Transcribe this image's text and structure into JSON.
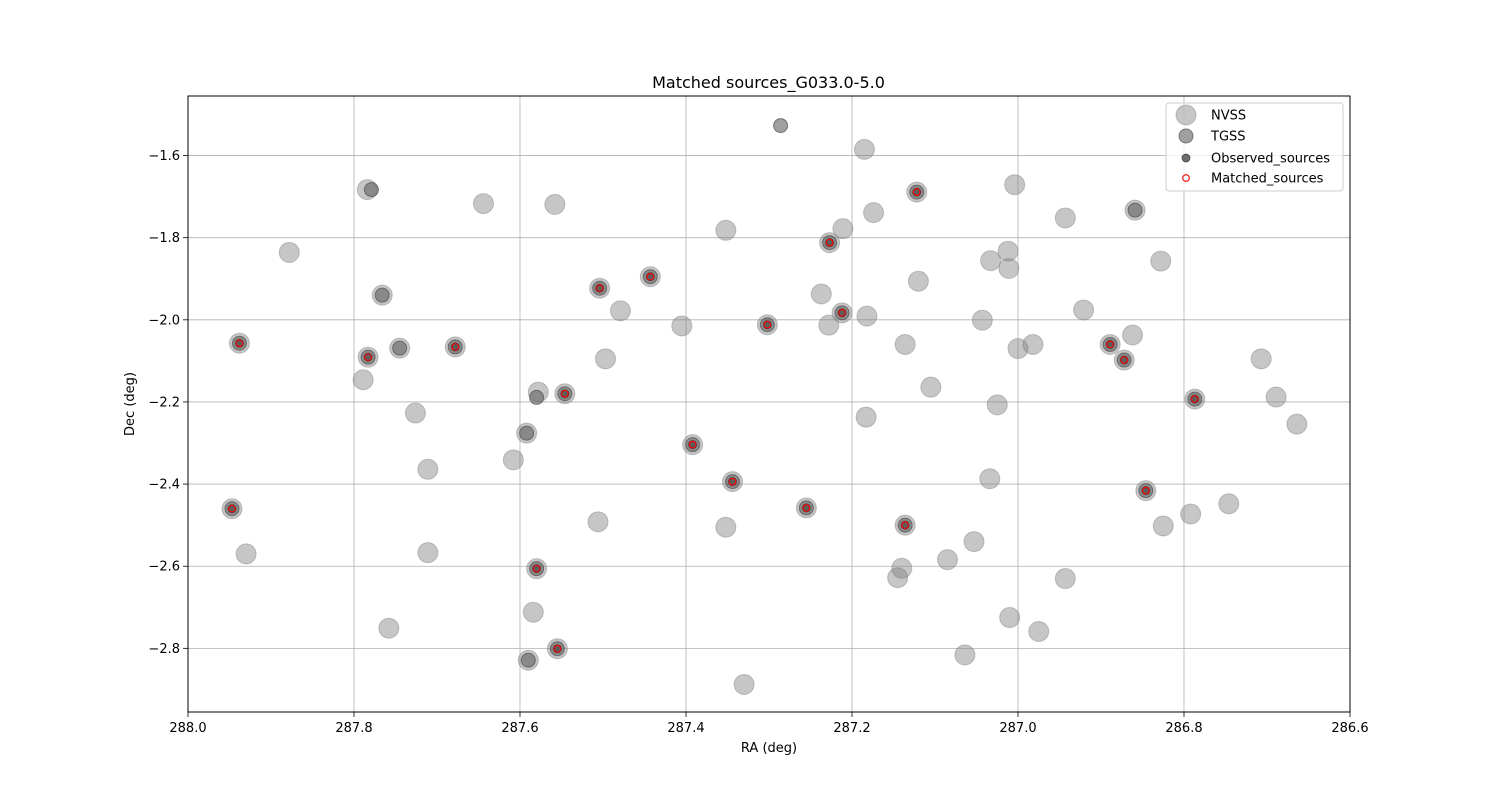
{
  "chart_data": {
    "type": "scatter",
    "title": "Matched sources_G033.0-5.0",
    "xlabel": "RA (deg)",
    "ylabel": "Dec (deg)",
    "xlim": [
      288.0,
      286.6
    ],
    "ylim": [
      -2.955,
      -1.455
    ],
    "x_inverted": true,
    "grid": true,
    "legend_position": "top-right",
    "xticks": [
      288.0,
      287.8,
      287.6,
      287.4,
      287.2,
      287.0,
      286.8,
      286.6
    ],
    "xtick_labels": [
      "288.0",
      "287.8",
      "287.6",
      "287.4",
      "287.2",
      "287.0",
      "286.8",
      "286.6"
    ],
    "yticks": [
      -1.6,
      -1.8,
      -2.0,
      -2.2,
      -2.4,
      -2.6,
      -2.8
    ],
    "ytick_labels": [
      "−1.6",
      "−1.8",
      "−2.0",
      "−2.2",
      "−2.4",
      "−2.6",
      "−2.8"
    ],
    "series": [
      {
        "name": "NVSS",
        "color": "#808080",
        "points": [
          [
            287.947,
            -2.46
          ],
          [
            287.938,
            -2.057
          ],
          [
            287.93,
            -2.57
          ],
          [
            287.878,
            -1.836
          ],
          [
            287.789,
            -2.146
          ],
          [
            287.784,
            -1.683
          ],
          [
            287.783,
            -2.091
          ],
          [
            287.766,
            -1.94
          ],
          [
            287.758,
            -2.751
          ],
          [
            287.745,
            -2.069
          ],
          [
            287.726,
            -2.227
          ],
          [
            287.711,
            -2.364
          ],
          [
            287.711,
            -2.567
          ],
          [
            287.678,
            -2.066
          ],
          [
            287.644,
            -1.717
          ],
          [
            287.608,
            -2.341
          ],
          [
            287.592,
            -2.276
          ],
          [
            287.59,
            -2.829
          ],
          [
            287.584,
            -2.712
          ],
          [
            287.58,
            -2.606
          ],
          [
            287.578,
            -2.176
          ],
          [
            287.558,
            -1.719
          ],
          [
            287.555,
            -2.801
          ],
          [
            287.546,
            -2.18
          ],
          [
            287.506,
            -2.492
          ],
          [
            287.504,
            -1.923
          ],
          [
            287.497,
            -2.095
          ],
          [
            287.479,
            -1.978
          ],
          [
            287.443,
            -1.895
          ],
          [
            287.405,
            -2.015
          ],
          [
            287.392,
            -2.304
          ],
          [
            287.352,
            -1.782
          ],
          [
            287.352,
            -2.505
          ],
          [
            287.344,
            -2.394
          ],
          [
            287.33,
            -2.888
          ],
          [
            287.302,
            -2.012
          ],
          [
            287.255,
            -2.458
          ],
          [
            287.237,
            -1.937
          ],
          [
            287.227,
            -1.812
          ],
          [
            287.228,
            -2.013
          ],
          [
            287.212,
            -1.983
          ],
          [
            287.211,
            -1.778
          ],
          [
            287.185,
            -1.585
          ],
          [
            287.183,
            -2.237
          ],
          [
            287.182,
            -1.991
          ],
          [
            287.174,
            -1.739
          ],
          [
            287.136,
            -2.06
          ],
          [
            287.136,
            -2.5
          ],
          [
            287.14,
            -2.605
          ],
          [
            287.145,
            -2.628
          ],
          [
            287.122,
            -1.689
          ],
          [
            287.12,
            -1.906
          ],
          [
            287.105,
            -2.164
          ],
          [
            287.085,
            -2.584
          ],
          [
            287.064,
            -2.816
          ],
          [
            287.053,
            -2.54
          ],
          [
            287.043,
            -2.001
          ],
          [
            287.034,
            -2.387
          ],
          [
            287.033,
            -1.856
          ],
          [
            287.025,
            -2.207
          ],
          [
            287.012,
            -1.833
          ],
          [
            287.011,
            -1.875
          ],
          [
            287.01,
            -2.725
          ],
          [
            287.004,
            -1.671
          ],
          [
            287.0,
            -2.07
          ],
          [
            286.982,
            -2.06
          ],
          [
            286.975,
            -2.759
          ],
          [
            286.943,
            -1.752
          ],
          [
            286.943,
            -2.63
          ],
          [
            286.921,
            -1.976
          ],
          [
            286.889,
            -2.06
          ],
          [
            286.872,
            -2.098
          ],
          [
            286.862,
            -2.037
          ],
          [
            286.859,
            -1.733
          ],
          [
            286.846,
            -2.416
          ],
          [
            286.828,
            -1.857
          ],
          [
            286.825,
            -2.502
          ],
          [
            286.792,
            -2.473
          ],
          [
            286.787,
            -2.193
          ],
          [
            286.746,
            -2.448
          ],
          [
            286.707,
            -2.095
          ],
          [
            286.689,
            -2.188
          ],
          [
            286.664,
            -2.254
          ]
        ]
      },
      {
        "name": "TGSS",
        "color": "#606060",
        "points": [
          [
            287.947,
            -2.46
          ],
          [
            287.938,
            -2.057
          ],
          [
            287.779,
            -1.683
          ],
          [
            287.783,
            -2.091
          ],
          [
            287.766,
            -1.94
          ],
          [
            287.745,
            -2.069
          ],
          [
            287.678,
            -2.066
          ],
          [
            287.592,
            -2.276
          ],
          [
            287.59,
            -2.829
          ],
          [
            287.58,
            -2.606
          ],
          [
            287.58,
            -2.189
          ],
          [
            287.555,
            -2.801
          ],
          [
            287.546,
            -2.18
          ],
          [
            287.504,
            -1.923
          ],
          [
            287.443,
            -1.895
          ],
          [
            287.392,
            -2.304
          ],
          [
            287.344,
            -2.394
          ],
          [
            287.302,
            -2.012
          ],
          [
            287.286,
            -1.527
          ],
          [
            287.255,
            -2.458
          ],
          [
            287.227,
            -1.812
          ],
          [
            287.212,
            -1.983
          ],
          [
            287.136,
            -2.5
          ],
          [
            287.122,
            -1.689
          ],
          [
            286.889,
            -2.06
          ],
          [
            286.872,
            -2.098
          ],
          [
            286.859,
            -1.733
          ],
          [
            286.846,
            -2.416
          ],
          [
            286.787,
            -2.193
          ]
        ]
      },
      {
        "name": "Observed_sources",
        "color": "#555555",
        "points": [
          [
            287.947,
            -2.46
          ],
          [
            287.938,
            -2.057
          ],
          [
            287.783,
            -2.091
          ],
          [
            287.678,
            -2.066
          ],
          [
            287.58,
            -2.606
          ],
          [
            287.555,
            -2.801
          ],
          [
            287.546,
            -2.18
          ],
          [
            287.504,
            -1.923
          ],
          [
            287.443,
            -1.895
          ],
          [
            287.392,
            -2.304
          ],
          [
            287.344,
            -2.394
          ],
          [
            287.302,
            -2.012
          ],
          [
            287.255,
            -2.458
          ],
          [
            287.227,
            -1.812
          ],
          [
            287.212,
            -1.983
          ],
          [
            287.136,
            -2.5
          ],
          [
            287.122,
            -1.689
          ],
          [
            286.889,
            -2.06
          ],
          [
            286.872,
            -2.098
          ],
          [
            286.846,
            -2.416
          ],
          [
            286.787,
            -2.193
          ]
        ]
      },
      {
        "name": "Matched_sources",
        "color": "#ff0000",
        "points": [
          [
            287.947,
            -2.46
          ],
          [
            287.938,
            -2.057
          ],
          [
            287.783,
            -2.091
          ],
          [
            287.678,
            -2.066
          ],
          [
            287.58,
            -2.606
          ],
          [
            287.555,
            -2.801
          ],
          [
            287.546,
            -2.18
          ],
          [
            287.504,
            -1.923
          ],
          [
            287.443,
            -1.895
          ],
          [
            287.392,
            -2.304
          ],
          [
            287.344,
            -2.394
          ],
          [
            287.302,
            -2.012
          ],
          [
            287.255,
            -2.458
          ],
          [
            287.227,
            -1.812
          ],
          [
            287.212,
            -1.983
          ],
          [
            287.136,
            -2.5
          ],
          [
            287.122,
            -1.689
          ],
          [
            286.889,
            -2.06
          ],
          [
            286.872,
            -2.098
          ],
          [
            286.846,
            -2.416
          ],
          [
            286.787,
            -2.193
          ]
        ]
      }
    ]
  }
}
